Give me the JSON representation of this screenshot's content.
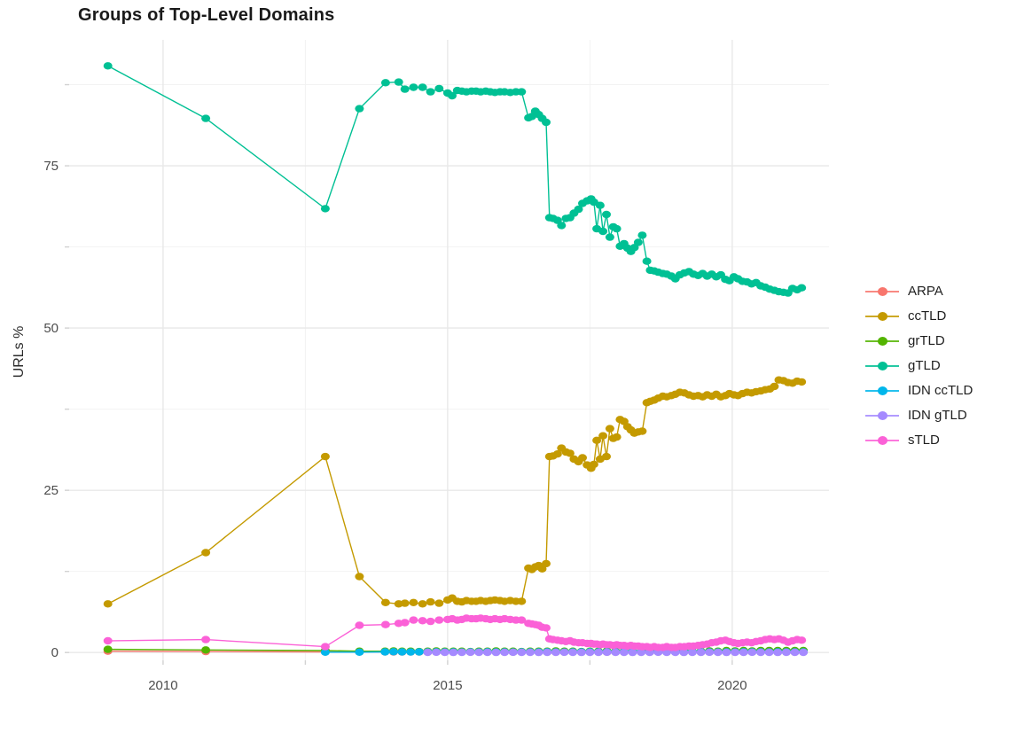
{
  "title": "Groups of Top-Level Domains",
  "colors": {
    "grid_major": "#e8e8e8",
    "grid_minor": "#f2f2f2",
    "tick_mark": "#d2d2d2",
    "axis_text": "#4d4d4d",
    "title_text": "#1a1a1a",
    "background": "#ffffff"
  },
  "legend": {
    "position": "right",
    "items": [
      {
        "label": "ARPA",
        "color": "#F8766D"
      },
      {
        "label": "ccTLD",
        "color": "#C49A00"
      },
      {
        "label": "grTLD",
        "color": "#53B400"
      },
      {
        "label": "gTLD",
        "color": "#00C094"
      },
      {
        "label": "IDN ccTLD",
        "color": "#00B6EB"
      },
      {
        "label": "IDN gTLD",
        "color": "#A58AFF"
      },
      {
        "label": "sTLD",
        "color": "#FB61D7"
      }
    ]
  },
  "chart_data": {
    "type": "line",
    "title": "Groups of Top-Level Domains",
    "xlabel": "",
    "ylabel": "URLs %",
    "xlim": [
      2008.35,
      2021.7
    ],
    "ylim": [
      -1.2,
      94.4
    ],
    "x_ticks": [
      2010,
      2015,
      2020
    ],
    "x_tick_labels": [
      "2010",
      "2015",
      "2020"
    ],
    "x_minor_ticks": [
      2012.5,
      2017.5
    ],
    "y_ticks": [
      0,
      25,
      50,
      75
    ],
    "y_tick_labels": [
      "0",
      "25",
      "50",
      "75"
    ],
    "y_minor_ticks": [
      12.5,
      37.5,
      62.5,
      87.5
    ],
    "grid": true,
    "legend_position": "right",
    "series": [
      {
        "name": "ARPA",
        "color": "#F8766D",
        "x": [
          2009.03,
          2010.75,
          2012.85,
          2013.45,
          2013.9,
          2014.05,
          2014.2,
          2014.35,
          2014.5,
          2014.65,
          2014.8,
          2014.95,
          2015.1,
          2015.25,
          2015.4,
          2015.55,
          2015.7,
          2015.85,
          2016.0,
          2016.15,
          2016.3,
          2016.45,
          2016.6,
          2016.75,
          2016.9,
          2017.05,
          2017.2,
          2017.35,
          2017.5,
          2017.65,
          2017.8,
          2017.95,
          2018.1,
          2018.25,
          2018.4,
          2018.55,
          2018.7,
          2018.85,
          2019.0,
          2019.15,
          2019.3,
          2019.45,
          2019.6,
          2019.75,
          2019.9,
          2020.05,
          2020.2,
          2020.35,
          2020.5,
          2020.65,
          2020.8,
          2020.95,
          2021.1,
          2021.25
        ],
        "y": [
          0.2,
          0.15,
          0.1,
          0.1,
          0.1,
          0.08,
          0.08,
          0.1,
          0.08,
          0.06,
          0.08,
          0.1,
          0.08,
          0.08,
          0.06,
          0.08,
          0.1,
          0.08,
          0.08,
          0.06,
          0.08,
          0.08,
          0.1,
          0.08,
          0.06,
          0.08,
          0.08,
          0.1,
          0.08,
          0.08,
          0.06,
          0.08,
          0.08,
          0.1,
          0.08,
          0.06,
          0.08,
          0.08,
          0.1,
          0.08,
          0.08,
          0.06,
          0.08,
          0.08,
          0.1,
          0.08,
          0.06,
          0.08,
          0.08,
          0.1,
          0.08,
          0.08,
          0.06,
          0.08
        ]
      },
      {
        "name": "ccTLD",
        "color": "#C49A00",
        "x": [
          2009.03,
          2010.75,
          2012.85,
          2013.45,
          2013.91,
          2014.14,
          2014.25,
          2014.4,
          2014.56,
          2014.7,
          2014.85,
          2015.0,
          2015.08,
          2015.17,
          2015.25,
          2015.33,
          2015.42,
          2015.5,
          2015.58,
          2015.67,
          2015.75,
          2015.83,
          2015.92,
          2016.0,
          2016.1,
          2016.2,
          2016.3,
          2016.42,
          2016.48,
          2016.54,
          2016.6,
          2016.66,
          2016.73,
          2016.79,
          2016.85,
          2016.93,
          2017.0,
          2017.08,
          2017.15,
          2017.22,
          2017.3,
          2017.37,
          2017.45,
          2017.52,
          2017.57,
          2017.62,
          2017.68,
          2017.73,
          2017.79,
          2017.85,
          2017.91,
          2017.97,
          2018.03,
          2018.1,
          2018.16,
          2018.22,
          2018.28,
          2018.35,
          2018.42,
          2018.5,
          2018.56,
          2018.63,
          2018.7,
          2018.78,
          2018.85,
          2018.93,
          2019.0,
          2019.08,
          2019.16,
          2019.24,
          2019.32,
          2019.4,
          2019.48,
          2019.56,
          2019.64,
          2019.72,
          2019.8,
          2019.88,
          2019.95,
          2020.03,
          2020.1,
          2020.18,
          2020.26,
          2020.34,
          2020.42,
          2020.5,
          2020.58,
          2020.66,
          2020.74,
          2020.82,
          2020.9,
          2020.98,
          2021.06,
          2021.14,
          2021.22
        ],
        "y": [
          7.5,
          15.4,
          30.2,
          11.7,
          7.7,
          7.5,
          7.6,
          7.7,
          7.5,
          7.8,
          7.6,
          8.1,
          8.4,
          7.9,
          7.8,
          8.0,
          7.9,
          7.9,
          8.0,
          7.9,
          8.0,
          8.1,
          8.0,
          7.9,
          8.0,
          7.9,
          7.9,
          13.0,
          12.8,
          13.2,
          13.4,
          12.9,
          13.7,
          30.2,
          30.3,
          30.6,
          31.5,
          30.9,
          30.7,
          29.8,
          29.4,
          30.0,
          28.9,
          28.4,
          29.0,
          32.7,
          29.8,
          33.4,
          30.2,
          34.5,
          33.0,
          33.2,
          35.9,
          35.6,
          34.8,
          34.3,
          33.8,
          34.0,
          34.1,
          38.5,
          38.7,
          38.9,
          39.2,
          39.5,
          39.4,
          39.6,
          39.8,
          40.1,
          40.0,
          39.7,
          39.5,
          39.6,
          39.4,
          39.7,
          39.5,
          39.8,
          39.4,
          39.6,
          39.9,
          39.7,
          39.6,
          39.9,
          40.1,
          40.0,
          40.2,
          40.3,
          40.5,
          40.6,
          41.0,
          42.0,
          41.9,
          41.6,
          41.5,
          41.8,
          41.7
        ]
      },
      {
        "name": "grTLD",
        "color": "#53B400",
        "x": [
          2009.03,
          2010.75,
          2012.85,
          2013.45,
          2013.9,
          2014.05,
          2014.2,
          2014.35,
          2014.5,
          2014.65,
          2014.8,
          2014.95,
          2015.1,
          2015.25,
          2015.4,
          2015.55,
          2015.7,
          2015.85,
          2016.0,
          2016.15,
          2016.3,
          2016.45,
          2016.6,
          2016.75,
          2016.9,
          2017.05,
          2017.2,
          2017.35,
          2017.5,
          2017.65,
          2017.8,
          2017.95,
          2018.1,
          2018.25,
          2018.4,
          2018.55,
          2018.7,
          2018.85,
          2019.0,
          2019.15,
          2019.3,
          2019.45,
          2019.6,
          2019.75,
          2019.9,
          2020.05,
          2020.2,
          2020.35,
          2020.5,
          2020.65,
          2020.8,
          2020.95,
          2021.1,
          2021.25
        ],
        "y": [
          0.5,
          0.4,
          0.3,
          0.2,
          0.2,
          0.25,
          0.2,
          0.2,
          0.15,
          0.2,
          0.25,
          0.2,
          0.2,
          0.2,
          0.15,
          0.2,
          0.2,
          0.25,
          0.2,
          0.2,
          0.15,
          0.2,
          0.2,
          0.2,
          0.25,
          0.2,
          0.2,
          0.15,
          0.2,
          0.2,
          0.25,
          0.2,
          0.2,
          0.15,
          0.2,
          0.2,
          0.25,
          0.2,
          0.2,
          0.25,
          0.2,
          0.2,
          0.25,
          0.2,
          0.3,
          0.25,
          0.3,
          0.25,
          0.3,
          0.3,
          0.3,
          0.3,
          0.3,
          0.3
        ]
      },
      {
        "name": "gTLD",
        "color": "#00C094",
        "x": [
          2009.03,
          2010.75,
          2012.85,
          2013.45,
          2013.91,
          2014.14,
          2014.25,
          2014.4,
          2014.56,
          2014.7,
          2014.85,
          2015.0,
          2015.08,
          2015.17,
          2015.25,
          2015.33,
          2015.42,
          2015.5,
          2015.58,
          2015.67,
          2015.75,
          2015.83,
          2015.92,
          2016.0,
          2016.1,
          2016.2,
          2016.3,
          2016.42,
          2016.48,
          2016.54,
          2016.6,
          2016.66,
          2016.73,
          2016.79,
          2016.85,
          2016.93,
          2017.0,
          2017.08,
          2017.15,
          2017.22,
          2017.3,
          2017.37,
          2017.45,
          2017.52,
          2017.57,
          2017.62,
          2017.68,
          2017.73,
          2017.79,
          2017.85,
          2017.91,
          2017.97,
          2018.03,
          2018.1,
          2018.16,
          2018.22,
          2018.28,
          2018.35,
          2018.42,
          2018.5,
          2018.56,
          2018.63,
          2018.7,
          2018.78,
          2018.85,
          2018.93,
          2019.0,
          2019.08,
          2019.16,
          2019.24,
          2019.32,
          2019.4,
          2019.48,
          2019.56,
          2019.64,
          2019.72,
          2019.8,
          2019.88,
          2019.95,
          2020.03,
          2020.1,
          2020.18,
          2020.26,
          2020.34,
          2020.42,
          2020.5,
          2020.58,
          2020.66,
          2020.74,
          2020.82,
          2020.9,
          2020.98,
          2021.06,
          2021.14,
          2021.22
        ],
        "y": [
          90.4,
          82.3,
          68.4,
          83.8,
          87.8,
          87.9,
          86.8,
          87.1,
          87.1,
          86.4,
          86.9,
          86.2,
          85.8,
          86.6,
          86.5,
          86.4,
          86.5,
          86.5,
          86.4,
          86.5,
          86.4,
          86.3,
          86.4,
          86.4,
          86.3,
          86.4,
          86.4,
          82.4,
          82.6,
          83.4,
          82.9,
          82.3,
          81.7,
          67.0,
          66.9,
          66.6,
          65.8,
          66.9,
          67.0,
          67.7,
          68.3,
          69.2,
          69.6,
          69.9,
          69.4,
          65.3,
          68.9,
          64.9,
          67.5,
          64.0,
          65.6,
          65.3,
          62.6,
          63.0,
          62.3,
          61.8,
          62.4,
          63.2,
          64.3,
          60.3,
          58.9,
          58.8,
          58.6,
          58.4,
          58.3,
          58.0,
          57.6,
          58.2,
          58.5,
          58.7,
          58.3,
          58.1,
          58.4,
          58.0,
          58.3,
          57.9,
          58.2,
          57.5,
          57.3,
          57.9,
          57.6,
          57.2,
          57.1,
          56.8,
          57.0,
          56.5,
          56.3,
          56.0,
          55.8,
          55.6,
          55.5,
          55.4,
          56.1,
          55.9,
          56.2
        ]
      },
      {
        "name": "IDN ccTLD",
        "color": "#00B6EB",
        "x": [
          2012.85,
          2013.45,
          2013.9,
          2014.05,
          2014.2,
          2014.35,
          2014.5,
          2014.65,
          2014.8,
          2014.95,
          2015.1,
          2015.25,
          2015.4,
          2015.55,
          2015.7,
          2015.85,
          2016.0,
          2016.15,
          2016.3,
          2016.45,
          2016.6,
          2016.75,
          2016.9,
          2017.05,
          2017.2,
          2017.35,
          2017.5,
          2017.65,
          2017.8,
          2017.95,
          2018.1,
          2018.25,
          2018.4,
          2018.55,
          2018.7,
          2018.85,
          2019.0,
          2019.15,
          2019.3,
          2019.45,
          2019.6,
          2019.75,
          2019.9,
          2020.05,
          2020.2,
          2020.35,
          2020.5,
          2020.65,
          2020.8,
          2020.95,
          2021.1,
          2021.25
        ],
        "y": [
          0.05,
          0.05,
          0.1,
          0.12,
          0.1,
          0.08,
          0.1,
          0.1,
          0.12,
          0.1,
          0.1,
          0.08,
          0.1,
          0.1,
          0.12,
          0.1,
          0.1,
          0.08,
          0.1,
          0.1,
          0.1,
          0.12,
          0.1,
          0.08,
          0.1,
          0.1,
          0.12,
          0.1,
          0.1,
          0.08,
          0.1,
          0.1,
          0.12,
          0.1,
          0.1,
          0.08,
          0.1,
          0.1,
          0.12,
          0.1,
          0.1,
          0.08,
          0.1,
          0.1,
          0.12,
          0.1,
          0.1,
          0.08,
          0.1,
          0.1,
          0.1,
          0.1
        ]
      },
      {
        "name": "IDN gTLD",
        "color": "#A58AFF",
        "x": [
          2014.65,
          2014.8,
          2014.95,
          2015.1,
          2015.25,
          2015.4,
          2015.55,
          2015.7,
          2015.85,
          2016.0,
          2016.15,
          2016.3,
          2016.45,
          2016.6,
          2016.75,
          2016.9,
          2017.05,
          2017.2,
          2017.35,
          2017.5,
          2017.65,
          2017.8,
          2017.95,
          2018.1,
          2018.25,
          2018.4,
          2018.55,
          2018.7,
          2018.85,
          2019.0,
          2019.15,
          2019.3,
          2019.45,
          2019.6,
          2019.75,
          2019.9,
          2020.05,
          2020.2,
          2020.35,
          2020.5,
          2020.65,
          2020.8,
          2020.95,
          2021.1,
          2021.25
        ],
        "y": [
          0.03,
          0.04,
          0.03,
          0.02,
          0.03,
          0.04,
          0.03,
          0.03,
          0.02,
          0.03,
          0.04,
          0.03,
          0.03,
          0.02,
          0.03,
          0.03,
          0.04,
          0.03,
          0.02,
          0.03,
          0.03,
          0.04,
          0.03,
          0.03,
          0.02,
          0.03,
          0.03,
          0.04,
          0.03,
          0.03,
          0.02,
          0.03,
          0.03,
          0.04,
          0.03,
          0.02,
          0.03,
          0.03,
          0.04,
          0.03,
          0.03,
          0.02,
          0.03,
          0.03,
          0.03
        ]
      },
      {
        "name": "sTLD",
        "color": "#FB61D7",
        "x": [
          2009.03,
          2010.75,
          2012.85,
          2013.45,
          2013.91,
          2014.14,
          2014.25,
          2014.4,
          2014.56,
          2014.7,
          2014.85,
          2015.0,
          2015.08,
          2015.17,
          2015.25,
          2015.33,
          2015.42,
          2015.5,
          2015.58,
          2015.67,
          2015.75,
          2015.83,
          2015.92,
          2016.0,
          2016.1,
          2016.2,
          2016.3,
          2016.42,
          2016.48,
          2016.54,
          2016.6,
          2016.66,
          2016.73,
          2016.79,
          2016.85,
          2016.93,
          2017.0,
          2017.08,
          2017.15,
          2017.22,
          2017.3,
          2017.37,
          2017.45,
          2017.52,
          2017.57,
          2017.62,
          2017.68,
          2017.73,
          2017.79,
          2017.85,
          2017.91,
          2017.97,
          2018.03,
          2018.1,
          2018.16,
          2018.22,
          2018.28,
          2018.35,
          2018.42,
          2018.5,
          2018.56,
          2018.63,
          2018.7,
          2018.78,
          2018.85,
          2018.93,
          2019.0,
          2019.08,
          2019.16,
          2019.24,
          2019.32,
          2019.4,
          2019.48,
          2019.56,
          2019.64,
          2019.72,
          2019.8,
          2019.88,
          2019.95,
          2020.03,
          2020.1,
          2020.18,
          2020.26,
          2020.34,
          2020.42,
          2020.5,
          2020.58,
          2020.66,
          2020.74,
          2020.82,
          2020.9,
          2020.98,
          2021.06,
          2021.14,
          2021.22
        ],
        "y": [
          1.8,
          2.0,
          0.9,
          4.2,
          4.3,
          4.5,
          4.6,
          5.0,
          4.9,
          4.8,
          5.0,
          5.1,
          5.2,
          5.0,
          5.1,
          5.3,
          5.2,
          5.2,
          5.3,
          5.2,
          5.1,
          5.2,
          5.1,
          5.2,
          5.1,
          5.0,
          5.0,
          4.5,
          4.4,
          4.3,
          4.2,
          3.9,
          3.8,
          2.1,
          2.0,
          1.9,
          1.8,
          1.7,
          1.8,
          1.6,
          1.5,
          1.5,
          1.4,
          1.4,
          1.3,
          1.3,
          1.2,
          1.3,
          1.2,
          1.2,
          1.1,
          1.2,
          1.1,
          1.1,
          1.0,
          1.1,
          1.0,
          1.0,
          0.9,
          0.9,
          0.8,
          0.9,
          0.8,
          0.8,
          0.9,
          0.8,
          0.8,
          0.9,
          0.9,
          1.0,
          1.0,
          1.1,
          1.2,
          1.3,
          1.5,
          1.6,
          1.8,
          1.9,
          1.7,
          1.5,
          1.4,
          1.5,
          1.6,
          1.5,
          1.7,
          1.8,
          2.0,
          2.1,
          2.0,
          2.1,
          1.9,
          1.6,
          1.8,
          2.0,
          1.9
        ]
      }
    ]
  }
}
